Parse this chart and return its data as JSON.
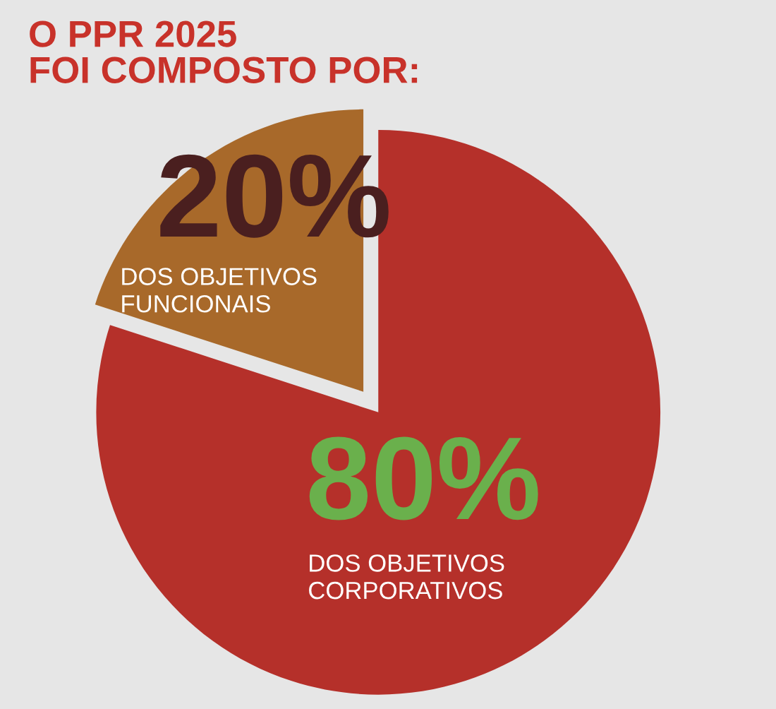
{
  "chart_data": {
    "type": "pie",
    "title": "O PPR 2025\nFOI COMPOSTO POR:",
    "categories": [
      "DOS OBJETIVOS\nCORPORATIVOS",
      "DOS OBJETIVOS\nFUNCIONAIS"
    ],
    "values": [
      80,
      20
    ],
    "colors": [
      "#b5302a",
      "#a8692a"
    ],
    "value_labels": [
      "80%",
      "20%"
    ],
    "legend": false
  }
}
